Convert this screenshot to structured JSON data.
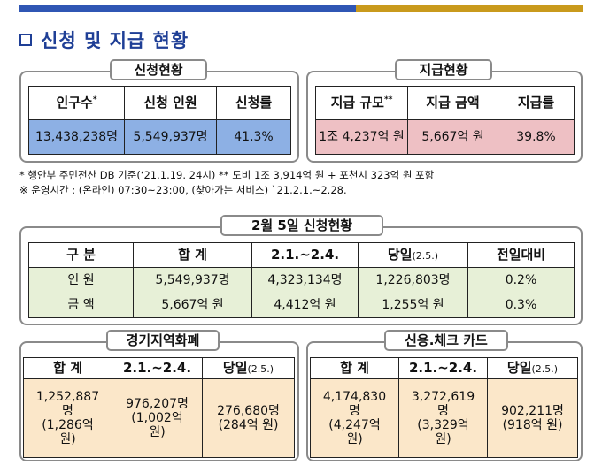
{
  "section_title": "신청 및 지급 현황",
  "application": {
    "tag": "신청현황",
    "headers": [
      "인구수",
      "신청 인원",
      "신청률"
    ],
    "header_mark": "*",
    "values": [
      "13,438,238명",
      "5,549,937명",
      "41.3%"
    ]
  },
  "payment": {
    "tag": "지급현황",
    "headers": [
      "지급 규모",
      "지급 금액",
      "지급률"
    ],
    "header_mark": "**",
    "values": [
      "1조 4,237억 원",
      "5,667억 원",
      "39.8%"
    ]
  },
  "notes": [
    "* 행안부 주민전산 DB 기준(‘21.1.19. 24시)  ** 도비 1조 3,914억 원 + 포천시 323억 원 포함",
    "※ 운영시간 : (온라인) 07:30~23:00, (찾아가는 서비스) `21.2.1.~2.28."
  ],
  "daily": {
    "tag": "2월 5일 신청현황",
    "headers": [
      "구 분",
      "합 계",
      "2.1.~2.4.",
      "당일",
      "(2.5.)",
      "전일대비"
    ],
    "rows": [
      [
        "인 원",
        "5,549,937명",
        "4,323,134명",
        "1,226,803명",
        "0.2%"
      ],
      [
        "금 액",
        "5,667억 원",
        "4,412억 원",
        "1,255억 원",
        "0.3%"
      ]
    ]
  },
  "local_currency": {
    "tag": "경기지역화폐",
    "headers": [
      "합 계",
      "2.1.~2.4.",
      "당일",
      "(2.5.)"
    ],
    "cells": [
      [
        "1,252,887",
        "명",
        "(1,286억",
        "원)"
      ],
      [
        "976,207명",
        "(1,002억",
        "원)"
      ],
      [
        "276,680명",
        "(284억 원)"
      ]
    ]
  },
  "card": {
    "tag": "신용.체크 카드",
    "headers": [
      "합 계",
      "2.1.~2.4.",
      "당일",
      "(2.5.)"
    ],
    "cells": [
      [
        "4,174,830",
        "명",
        "(4,247억",
        "원)"
      ],
      [
        "3,272,619",
        "명",
        "(3,329억",
        "원)"
      ],
      [
        "902,211명",
        "(918억 원)"
      ]
    ]
  }
}
